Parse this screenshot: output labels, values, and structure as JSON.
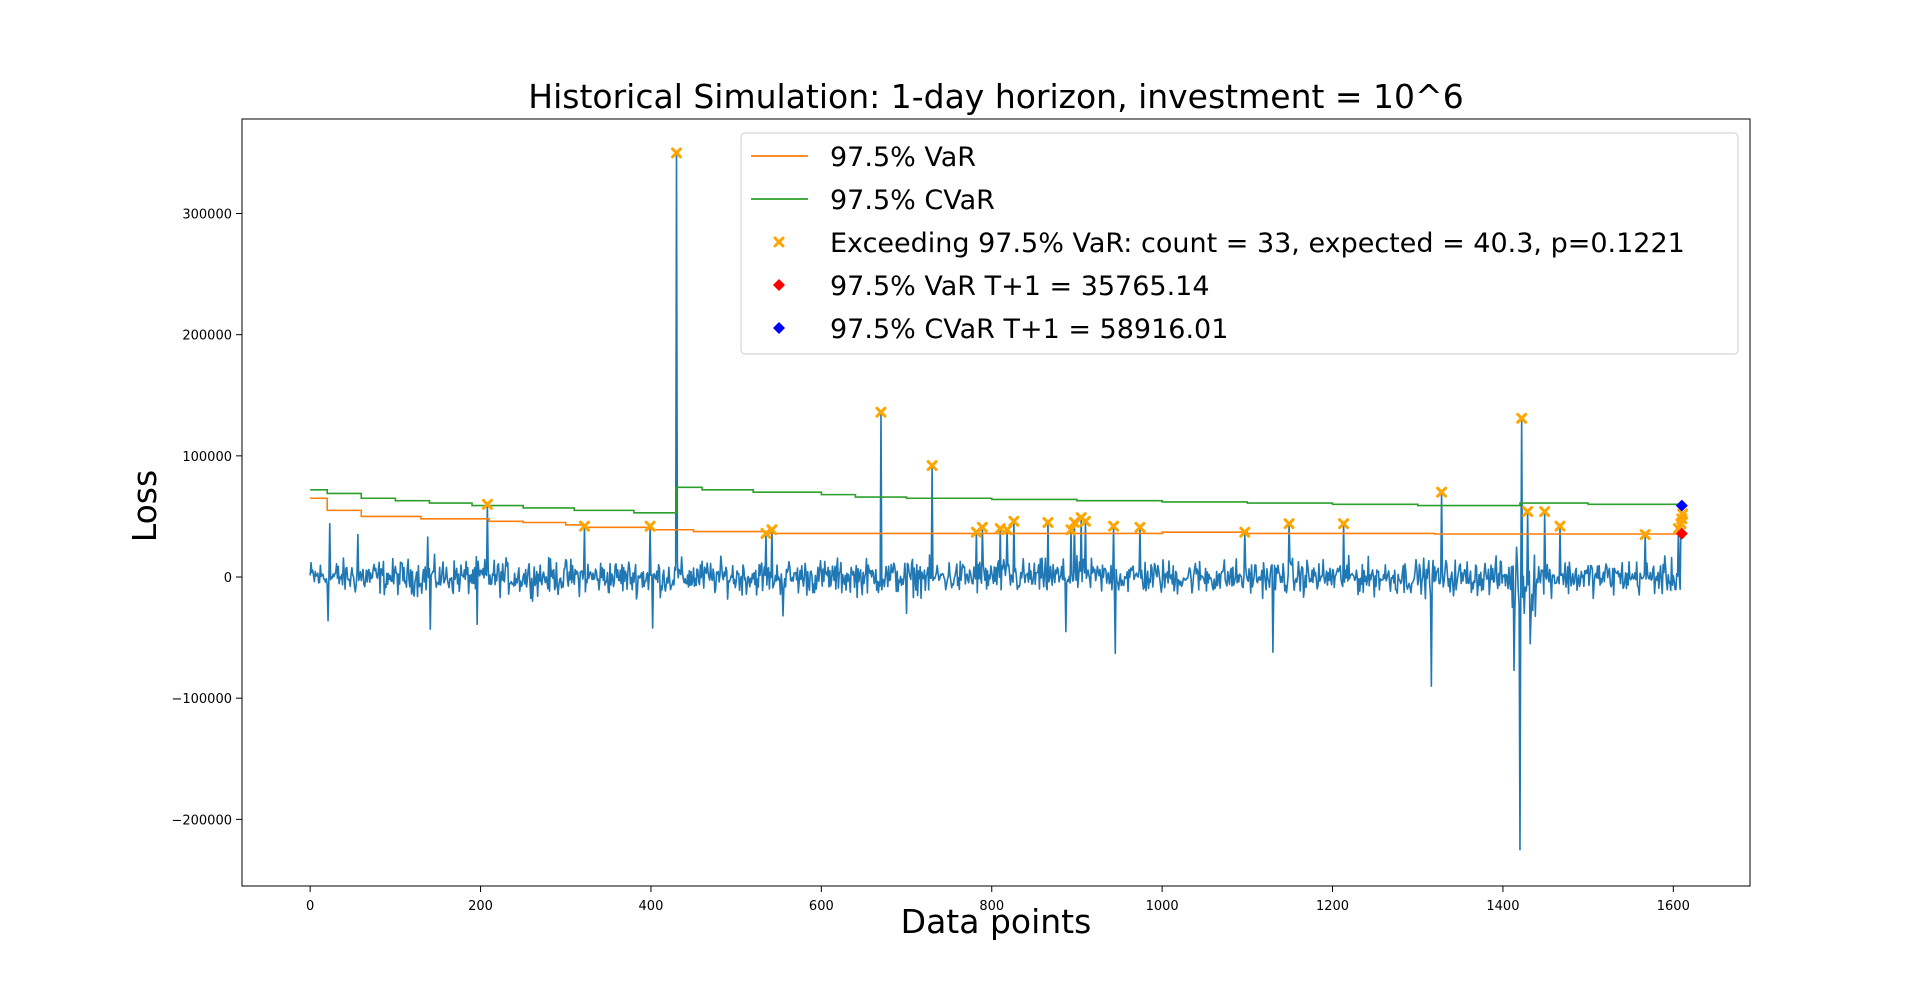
{
  "chart_data": {
    "type": "line",
    "title": "Historical Simulation: 1-day horizon, investment = 10^6",
    "xlabel": "Data points",
    "ylabel": "Loss",
    "xlim": [
      -80,
      1690
    ],
    "ylim": [
      -255000,
      378000
    ],
    "xticks": [
      0,
      200,
      400,
      600,
      800,
      1000,
      1200,
      1400,
      1600
    ],
    "yticks": [
      -200000,
      -100000,
      0,
      100000,
      200000,
      300000
    ],
    "ytick_labels": [
      "−200000",
      "−100000",
      "0",
      "100000",
      "200000",
      "300000"
    ],
    "grid": false,
    "legend_position": "upper-right",
    "colors": {
      "loss": "#1f77b4",
      "var": "#ff7f0e",
      "cvar": "#2ca02c",
      "exceed": "#ffa500",
      "var_next": "#ff0000",
      "cvar_next": "#0000ff"
    },
    "loss_n": 1610,
    "loss_spikes": [
      {
        "x": 23,
        "y": 44000
      },
      {
        "x": 21,
        "y": -36000
      },
      {
        "x": 56,
        "y": 35000
      },
      {
        "x": 141,
        "y": -43000
      },
      {
        "x": 138,
        "y": 33000
      },
      {
        "x": 196,
        "y": -39000
      },
      {
        "x": 208,
        "y": 60000
      },
      {
        "x": 322,
        "y": 42000
      },
      {
        "x": 399,
        "y": 42000
      },
      {
        "x": 402,
        "y": -42000
      },
      {
        "x": 430,
        "y": 350000
      },
      {
        "x": 535,
        "y": 36000
      },
      {
        "x": 542,
        "y": 39000
      },
      {
        "x": 555,
        "y": -32000
      },
      {
        "x": 670,
        "y": 136000
      },
      {
        "x": 700,
        "y": -30000
      },
      {
        "x": 730,
        "y": 92000
      },
      {
        "x": 782,
        "y": 37000
      },
      {
        "x": 789,
        "y": 41000
      },
      {
        "x": 810,
        "y": 40000
      },
      {
        "x": 818,
        "y": 39000
      },
      {
        "x": 826,
        "y": 46000
      },
      {
        "x": 866,
        "y": 45000
      },
      {
        "x": 887,
        "y": -45000
      },
      {
        "x": 893,
        "y": 39000
      },
      {
        "x": 897,
        "y": 45000
      },
      {
        "x": 905,
        "y": 49000
      },
      {
        "x": 910,
        "y": 46000
      },
      {
        "x": 943,
        "y": 42000
      },
      {
        "x": 945,
        "y": -63000
      },
      {
        "x": 974,
        "y": 41000
      },
      {
        "x": 1097,
        "y": 37000
      },
      {
        "x": 1130,
        "y": -62000
      },
      {
        "x": 1149,
        "y": 44000
      },
      {
        "x": 1213,
        "y": 44000
      },
      {
        "x": 1316,
        "y": -90000
      },
      {
        "x": 1328,
        "y": 70000
      },
      {
        "x": 1413,
        "y": -77000
      },
      {
        "x": 1420,
        "y": -225000
      },
      {
        "x": 1422,
        "y": 131000
      },
      {
        "x": 1429,
        "y": 54000
      },
      {
        "x": 1432,
        "y": -55000
      },
      {
        "x": 1449,
        "y": 54000
      },
      {
        "x": 1467,
        "y": 42000
      },
      {
        "x": 1567,
        "y": 35000
      },
      {
        "x": 1606,
        "y": 40000
      },
      {
        "x": 1609,
        "y": 48000
      }
    ],
    "series": [
      {
        "name": "97.5% VaR",
        "color": "#ff7f0e",
        "points": [
          [
            0,
            65000
          ],
          [
            20,
            65000
          ],
          [
            20,
            55000
          ],
          [
            60,
            55000
          ],
          [
            60,
            50000
          ],
          [
            130,
            50000
          ],
          [
            130,
            48000
          ],
          [
            210,
            48000
          ],
          [
            210,
            46000
          ],
          [
            250,
            46000
          ],
          [
            250,
            45000
          ],
          [
            300,
            45000
          ],
          [
            300,
            43000
          ],
          [
            320,
            43000
          ],
          [
            320,
            41000
          ],
          [
            400,
            41000
          ],
          [
            400,
            39000
          ],
          [
            450,
            39000
          ],
          [
            450,
            37500
          ],
          [
            540,
            37500
          ],
          [
            540,
            36000
          ],
          [
            1000,
            36000
          ],
          [
            1000,
            37000
          ],
          [
            1100,
            37000
          ],
          [
            1100,
            36000
          ],
          [
            1320,
            36000
          ],
          [
            1320,
            35500
          ],
          [
            1600,
            35500
          ],
          [
            1609,
            35500
          ]
        ]
      },
      {
        "name": "97.5% CVaR",
        "color": "#2ca02c",
        "points": [
          [
            0,
            72000
          ],
          [
            20,
            72000
          ],
          [
            20,
            69000
          ],
          [
            60,
            69000
          ],
          [
            60,
            65000
          ],
          [
            100,
            65000
          ],
          [
            100,
            63000
          ],
          [
            140,
            63000
          ],
          [
            140,
            61000
          ],
          [
            190,
            61000
          ],
          [
            190,
            59000
          ],
          [
            250,
            59000
          ],
          [
            250,
            57000
          ],
          [
            310,
            57000
          ],
          [
            310,
            55000
          ],
          [
            380,
            55000
          ],
          [
            380,
            53000
          ],
          [
            430,
            53000
          ],
          [
            430,
            74000
          ],
          [
            460,
            74000
          ],
          [
            460,
            72000
          ],
          [
            520,
            72000
          ],
          [
            520,
            70000
          ],
          [
            600,
            70000
          ],
          [
            600,
            68000
          ],
          [
            640,
            68000
          ],
          [
            640,
            66000
          ],
          [
            700,
            66000
          ],
          [
            700,
            65000
          ],
          [
            800,
            65000
          ],
          [
            800,
            64000
          ],
          [
            900,
            64000
          ],
          [
            900,
            63000
          ],
          [
            1000,
            63000
          ],
          [
            1000,
            62000
          ],
          [
            1100,
            62000
          ],
          [
            1100,
            61000
          ],
          [
            1200,
            61000
          ],
          [
            1200,
            60000
          ],
          [
            1300,
            60000
          ],
          [
            1300,
            59000
          ],
          [
            1420,
            59000
          ],
          [
            1420,
            61000
          ],
          [
            1500,
            61000
          ],
          [
            1500,
            60000
          ],
          [
            1609,
            60000
          ]
        ]
      }
    ],
    "exceedances": [
      [
        208,
        60000
      ],
      [
        322,
        42000
      ],
      [
        399,
        42000
      ],
      [
        430,
        350000
      ],
      [
        535,
        36000
      ],
      [
        542,
        39000
      ],
      [
        670,
        136000
      ],
      [
        730,
        92000
      ],
      [
        782,
        37000
      ],
      [
        789,
        41000
      ],
      [
        810,
        40000
      ],
      [
        818,
        39000
      ],
      [
        826,
        46000
      ],
      [
        866,
        45000
      ],
      [
        893,
        39000
      ],
      [
        897,
        45000
      ],
      [
        905,
        49000
      ],
      [
        910,
        46000
      ],
      [
        943,
        42000
      ],
      [
        974,
        41000
      ],
      [
        1097,
        37000
      ],
      [
        1149,
        44000
      ],
      [
        1213,
        44000
      ],
      [
        1328,
        70000
      ],
      [
        1422,
        131000
      ],
      [
        1429,
        54000
      ],
      [
        1449,
        54000
      ],
      [
        1467,
        42000
      ],
      [
        1567,
        35000
      ],
      [
        1606,
        40000
      ],
      [
        1609,
        44000
      ],
      [
        1610,
        48000
      ],
      [
        1611,
        52000
      ]
    ],
    "var_next": {
      "x": 1610,
      "y": 35765.14
    },
    "cvar_next": {
      "x": 1610,
      "y": 58916.01
    },
    "legend": [
      {
        "label": "97.5% VaR",
        "kind": "line",
        "color": "#ff7f0e"
      },
      {
        "label": "97.5% CVaR",
        "kind": "line",
        "color": "#2ca02c"
      },
      {
        "label": "Exceeding 97.5% VaR: count = 33, expected = 40.3, p=0.1221",
        "kind": "x-marker",
        "color": "#ffa500"
      },
      {
        "label": "97.5% VaR T+1 = 35765.14",
        "kind": "diamond",
        "color": "#ff0000"
      },
      {
        "label": "97.5% CVaR T+1 = 58916.01",
        "kind": "diamond",
        "color": "#0000ff"
      }
    ]
  }
}
